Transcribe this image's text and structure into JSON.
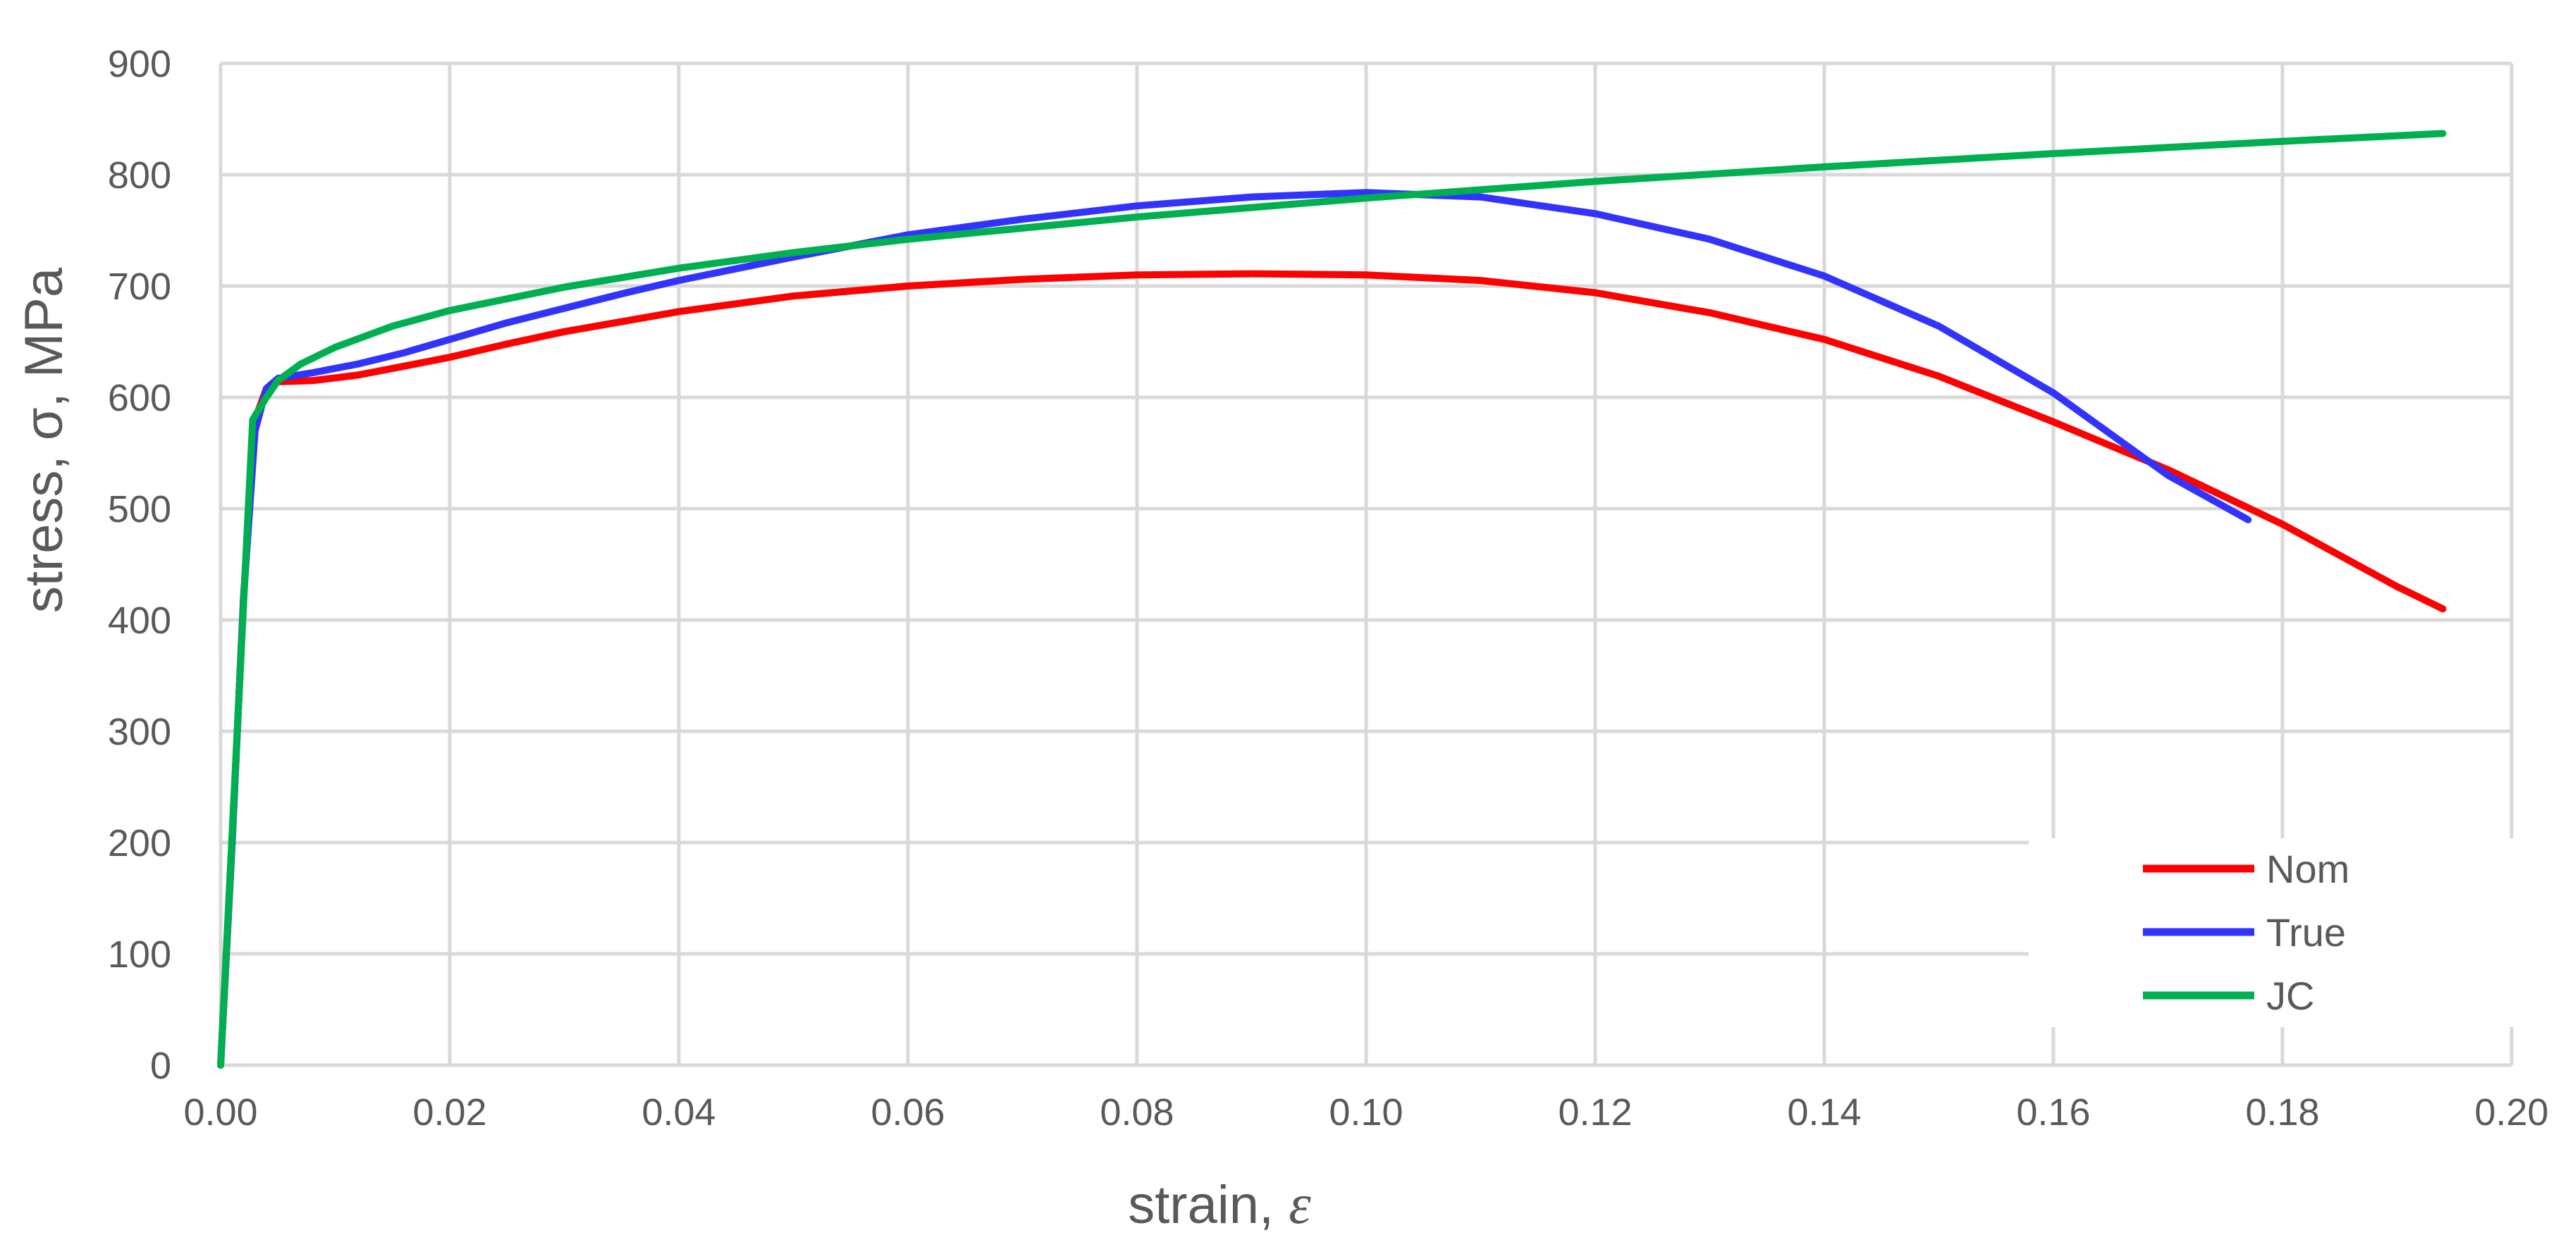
{
  "chart_data": {
    "type": "line",
    "xlabel": "strain, ",
    "xlabel_symbol": "ε",
    "ylabel": "stress, σ, MPa",
    "xlim": [
      0,
      0.2
    ],
    "ylim": [
      0,
      900
    ],
    "x_ticks": [
      "0.00",
      "0.02",
      "0.04",
      "0.06",
      "0.08",
      "0.10",
      "0.12",
      "0.14",
      "0.16",
      "0.18",
      "0.20"
    ],
    "y_ticks": [
      "0",
      "100",
      "200",
      "300",
      "400",
      "500",
      "600",
      "700",
      "800",
      "900"
    ],
    "grid": true,
    "legend_position": "bottom-right",
    "series": [
      {
        "name": "Nom",
        "color": "#ff0000",
        "x": [
          0,
          0.001,
          0.002,
          0.003,
          0.004,
          0.005,
          0.008,
          0.012,
          0.016,
          0.02,
          0.025,
          0.03,
          0.035,
          0.04,
          0.05,
          0.06,
          0.07,
          0.08,
          0.09,
          0.1,
          0.11,
          0.12,
          0.13,
          0.14,
          0.15,
          0.16,
          0.17,
          0.18,
          0.19,
          0.194
        ],
        "y": [
          0,
          200,
          420,
          580,
          608,
          614,
          615,
          620,
          628,
          636,
          648,
          659,
          668,
          677,
          691,
          700,
          706,
          710,
          711,
          710,
          705,
          694,
          676,
          652,
          619,
          578,
          535,
          486,
          430,
          410
        ]
      },
      {
        "name": "True",
        "color": "#3333ff",
        "x": [
          0,
          0.001,
          0.002,
          0.003,
          0.004,
          0.005,
          0.008,
          0.012,
          0.016,
          0.02,
          0.025,
          0.03,
          0.035,
          0.04,
          0.05,
          0.06,
          0.07,
          0.08,
          0.09,
          0.1,
          0.11,
          0.12,
          0.13,
          0.14,
          0.15,
          0.16,
          0.17,
          0.177
        ],
        "y": [
          0,
          200,
          420,
          570,
          608,
          617,
          622,
          630,
          640,
          652,
          667,
          680,
          693,
          705,
          726,
          746,
          760,
          772,
          780,
          784,
          780,
          765,
          742,
          709,
          664,
          604,
          530,
          490
        ]
      },
      {
        "name": "JC",
        "color": "#00b050",
        "x": [
          0,
          0.0028,
          0.004,
          0.005,
          0.007,
          0.01,
          0.015,
          0.02,
          0.03,
          0.04,
          0.05,
          0.06,
          0.08,
          0.1,
          0.12,
          0.14,
          0.16,
          0.18,
          0.194
        ],
        "y": [
          0,
          580,
          600,
          615,
          630,
          645,
          664,
          678,
          699,
          716,
          730,
          742,
          762,
          779,
          794,
          807,
          819,
          830,
          837
        ]
      }
    ]
  }
}
